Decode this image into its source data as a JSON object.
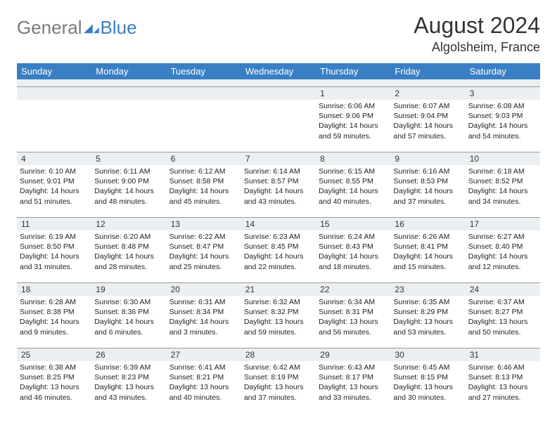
{
  "logo": {
    "part1": "General",
    "part2": "Blue"
  },
  "title": "August 2024",
  "location": "Algolsheim, France",
  "colors": {
    "header_bg": "#3a7fc4",
    "header_text": "#ffffff",
    "daynum_bg": "#eceff1",
    "border": "#999999",
    "text": "#222222"
  },
  "fonts": {
    "title_size": 32,
    "location_size": 18,
    "dayheader_size": 13,
    "daynum_size": 12,
    "detail_size": 10.5
  },
  "day_names": [
    "Sunday",
    "Monday",
    "Tuesday",
    "Wednesday",
    "Thursday",
    "Friday",
    "Saturday"
  ],
  "weeks": [
    [
      null,
      null,
      null,
      null,
      {
        "n": "1",
        "sunrise": "6:06 AM",
        "sunset": "9:06 PM",
        "daylight": "14 hours and 59 minutes."
      },
      {
        "n": "2",
        "sunrise": "6:07 AM",
        "sunset": "9:04 PM",
        "daylight": "14 hours and 57 minutes."
      },
      {
        "n": "3",
        "sunrise": "6:08 AM",
        "sunset": "9:03 PM",
        "daylight": "14 hours and 54 minutes."
      }
    ],
    [
      {
        "n": "4",
        "sunrise": "6:10 AM",
        "sunset": "9:01 PM",
        "daylight": "14 hours and 51 minutes."
      },
      {
        "n": "5",
        "sunrise": "6:11 AM",
        "sunset": "9:00 PM",
        "daylight": "14 hours and 48 minutes."
      },
      {
        "n": "6",
        "sunrise": "6:12 AM",
        "sunset": "8:58 PM",
        "daylight": "14 hours and 45 minutes."
      },
      {
        "n": "7",
        "sunrise": "6:14 AM",
        "sunset": "8:57 PM",
        "daylight": "14 hours and 43 minutes."
      },
      {
        "n": "8",
        "sunrise": "6:15 AM",
        "sunset": "8:55 PM",
        "daylight": "14 hours and 40 minutes."
      },
      {
        "n": "9",
        "sunrise": "6:16 AM",
        "sunset": "8:53 PM",
        "daylight": "14 hours and 37 minutes."
      },
      {
        "n": "10",
        "sunrise": "6:18 AM",
        "sunset": "8:52 PM",
        "daylight": "14 hours and 34 minutes."
      }
    ],
    [
      {
        "n": "11",
        "sunrise": "6:19 AM",
        "sunset": "8:50 PM",
        "daylight": "14 hours and 31 minutes."
      },
      {
        "n": "12",
        "sunrise": "6:20 AM",
        "sunset": "8:48 PM",
        "daylight": "14 hours and 28 minutes."
      },
      {
        "n": "13",
        "sunrise": "6:22 AM",
        "sunset": "8:47 PM",
        "daylight": "14 hours and 25 minutes."
      },
      {
        "n": "14",
        "sunrise": "6:23 AM",
        "sunset": "8:45 PM",
        "daylight": "14 hours and 22 minutes."
      },
      {
        "n": "15",
        "sunrise": "6:24 AM",
        "sunset": "8:43 PM",
        "daylight": "14 hours and 18 minutes."
      },
      {
        "n": "16",
        "sunrise": "6:26 AM",
        "sunset": "8:41 PM",
        "daylight": "14 hours and 15 minutes."
      },
      {
        "n": "17",
        "sunrise": "6:27 AM",
        "sunset": "8:40 PM",
        "daylight": "14 hours and 12 minutes."
      }
    ],
    [
      {
        "n": "18",
        "sunrise": "6:28 AM",
        "sunset": "8:38 PM",
        "daylight": "14 hours and 9 minutes."
      },
      {
        "n": "19",
        "sunrise": "6:30 AM",
        "sunset": "8:36 PM",
        "daylight": "14 hours and 6 minutes."
      },
      {
        "n": "20",
        "sunrise": "6:31 AM",
        "sunset": "8:34 PM",
        "daylight": "14 hours and 3 minutes."
      },
      {
        "n": "21",
        "sunrise": "6:32 AM",
        "sunset": "8:32 PM",
        "daylight": "13 hours and 59 minutes."
      },
      {
        "n": "22",
        "sunrise": "6:34 AM",
        "sunset": "8:31 PM",
        "daylight": "13 hours and 56 minutes."
      },
      {
        "n": "23",
        "sunrise": "6:35 AM",
        "sunset": "8:29 PM",
        "daylight": "13 hours and 53 minutes."
      },
      {
        "n": "24",
        "sunrise": "6:37 AM",
        "sunset": "8:27 PM",
        "daylight": "13 hours and 50 minutes."
      }
    ],
    [
      {
        "n": "25",
        "sunrise": "6:38 AM",
        "sunset": "8:25 PM",
        "daylight": "13 hours and 46 minutes."
      },
      {
        "n": "26",
        "sunrise": "6:39 AM",
        "sunset": "8:23 PM",
        "daylight": "13 hours and 43 minutes."
      },
      {
        "n": "27",
        "sunrise": "6:41 AM",
        "sunset": "8:21 PM",
        "daylight": "13 hours and 40 minutes."
      },
      {
        "n": "28",
        "sunrise": "6:42 AM",
        "sunset": "8:19 PM",
        "daylight": "13 hours and 37 minutes."
      },
      {
        "n": "29",
        "sunrise": "6:43 AM",
        "sunset": "8:17 PM",
        "daylight": "13 hours and 33 minutes."
      },
      {
        "n": "30",
        "sunrise": "6:45 AM",
        "sunset": "8:15 PM",
        "daylight": "13 hours and 30 minutes."
      },
      {
        "n": "31",
        "sunrise": "6:46 AM",
        "sunset": "8:13 PM",
        "daylight": "13 hours and 27 minutes."
      }
    ]
  ]
}
